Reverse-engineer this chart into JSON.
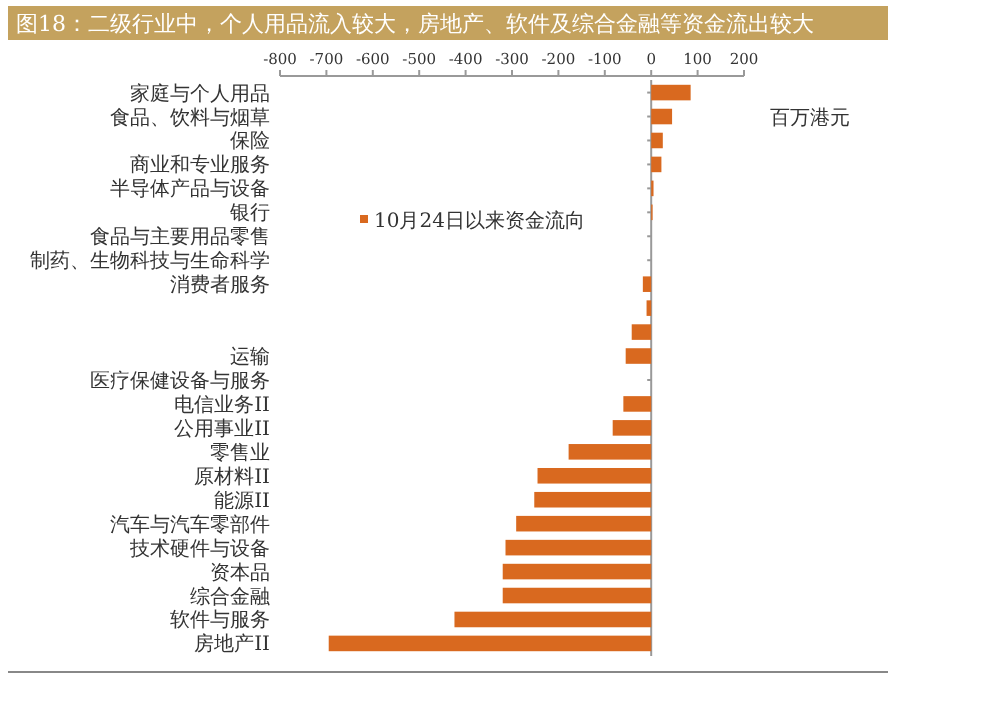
{
  "chart_data": {
    "type": "bar",
    "orientation": "horizontal",
    "title": "图18：二级行业中，个人用品流入较大，房地产、软件及综合金融等资金流出较大",
    "categories": [
      "家庭与个人用品",
      "食品、饮料与烟草",
      "保险",
      "商业和专业服务",
      "半导体产品与设备",
      "银行",
      "食品与主要用品零售",
      "制药、生物科技与生命科学",
      "消费者服务",
      null,
      null,
      "运输",
      "医疗保健设备与服务",
      "电信业务II",
      "公用事业II",
      "零售业",
      "原材料II",
      "能源II",
      "汽车与汽车零部件",
      "技术硬件与设备",
      "资本品",
      "综合金融",
      "软件与服务",
      "房地产II"
    ],
    "series": [
      {
        "name": "10月24日以来资金流向",
        "color": "#d9691f",
        "values": [
          85,
          45,
          25,
          22,
          5,
          3,
          0,
          0,
          -18,
          -10,
          -42,
          -55,
          null,
          -60,
          -83,
          -178,
          -245,
          -252,
          -291,
          -314,
          -320,
          -320,
          -424,
          -695
        ]
      }
    ],
    "xlim": [
      -800,
      200
    ],
    "xticks": [
      -800,
      -700,
      -600,
      -500,
      -400,
      -300,
      -200,
      -100,
      0,
      100,
      200
    ],
    "annotations": [
      "百万港元"
    ],
    "legend": "left",
    "grid": false
  }
}
